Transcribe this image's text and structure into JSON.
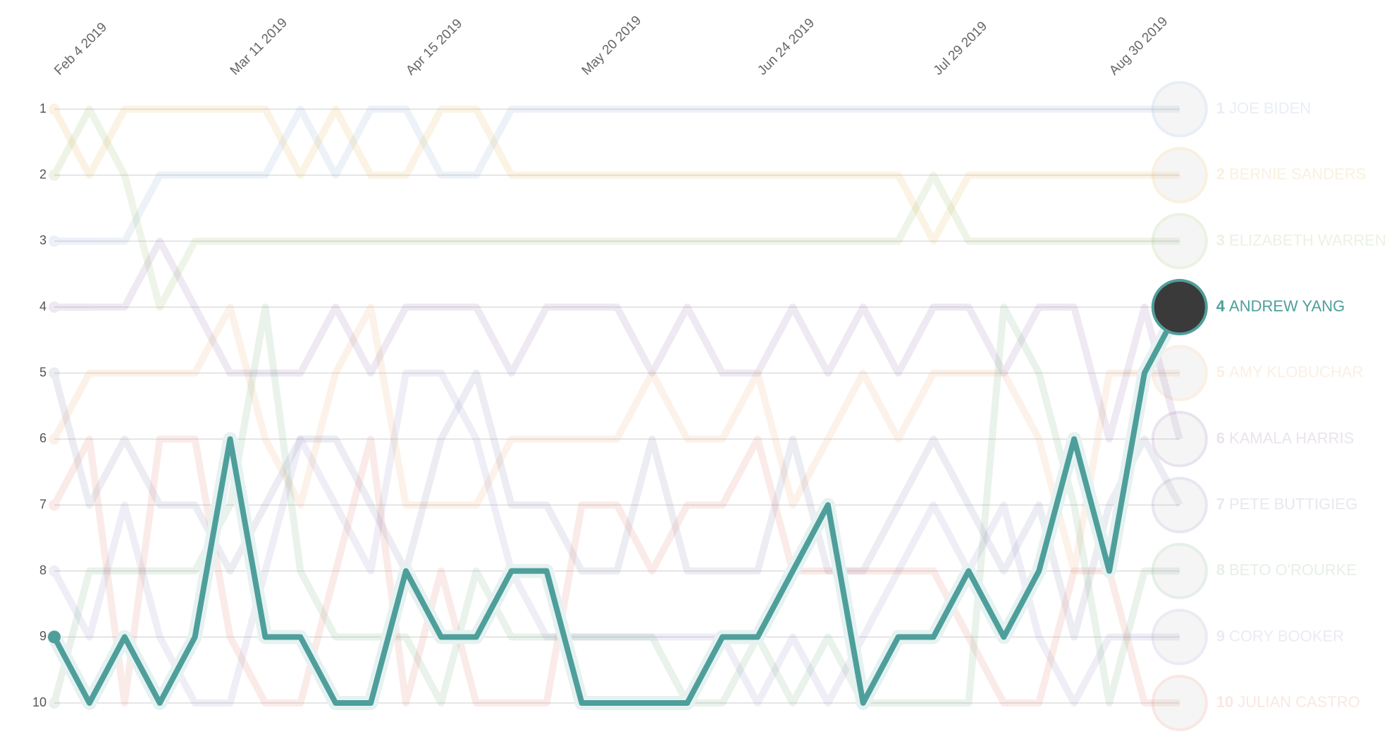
{
  "chart_data": {
    "type": "bump",
    "categories": [
      "Feb 4 2019",
      null,
      null,
      null,
      null,
      "Mar 11 2019",
      null,
      null,
      null,
      null,
      "Apr 15 2019",
      null,
      null,
      null,
      null,
      "May 20 2019",
      null,
      null,
      null,
      null,
      "Jun 24 2019",
      null,
      null,
      null,
      null,
      "Jul 29 2019",
      null,
      null,
      null,
      null,
      "Aug 30 2019",
      null,
      null
    ],
    "ylim": [
      1,
      10
    ],
    "yticks": [
      1,
      2,
      3,
      4,
      5,
      6,
      7,
      8,
      9,
      10
    ],
    "grid": true,
    "series": [
      {
        "name": "JOE BIDEN",
        "color": "#8fb0d4",
        "values": [
          3,
          3,
          3,
          2,
          2,
          2,
          2,
          1,
          2,
          1,
          1,
          2,
          2,
          1,
          1,
          1,
          1,
          1,
          1,
          1,
          1,
          1,
          1,
          1,
          1,
          1,
          1,
          1,
          1,
          1,
          1,
          1,
          1
        ]
      },
      {
        "name": "BERNIE SANDERS",
        "color": "#e8b960",
        "values": [
          1,
          2,
          1,
          1,
          1,
          1,
          1,
          2,
          1,
          2,
          2,
          1,
          1,
          2,
          2,
          2,
          2,
          2,
          2,
          2,
          2,
          2,
          2,
          2,
          2,
          3,
          2,
          2,
          2,
          2,
          2,
          2,
          2
        ]
      },
      {
        "name": "ELIZABETH WARREN",
        "color": "#9bbf6e",
        "values": [
          2,
          1,
          2,
          4,
          3,
          3,
          3,
          3,
          3,
          3,
          3,
          3,
          3,
          3,
          3,
          3,
          3,
          3,
          3,
          3,
          3,
          3,
          3,
          3,
          3,
          2,
          3,
          3,
          3,
          3,
          3,
          3,
          3
        ]
      },
      {
        "name": "ANDREW YANG",
        "color": "#4e9f9b",
        "highlight": true,
        "values": [
          9,
          10,
          9,
          10,
          9,
          6,
          9,
          9,
          10,
          10,
          8,
          9,
          9,
          8,
          8,
          10,
          10,
          10,
          10,
          9,
          9,
          8,
          7,
          10,
          9,
          9,
          8,
          9,
          8,
          6,
          8,
          5,
          4
        ]
      },
      {
        "name": "AMY KLOBUCHAR",
        "color": "#f0b27a",
        "values": [
          6,
          5,
          5,
          5,
          5,
          4,
          6,
          7,
          5,
          4,
          7,
          7,
          7,
          6,
          6,
          6,
          6,
          5,
          6,
          6,
          5,
          7,
          6,
          5,
          6,
          5,
          5,
          5,
          6,
          8,
          5,
          5,
          5
        ]
      },
      {
        "name": "KAMALA HARRIS",
        "color": "#9a7ab0",
        "values": [
          4,
          4,
          4,
          3,
          4,
          5,
          5,
          5,
          4,
          5,
          4,
          4,
          4,
          5,
          4,
          4,
          4,
          5,
          4,
          5,
          5,
          4,
          5,
          4,
          5,
          4,
          4,
          5,
          4,
          4,
          6,
          4,
          6
        ]
      },
      {
        "name": "PETE BUTTIGIEG",
        "color": "#8c8cb8",
        "values": [
          5,
          7,
          6,
          7,
          7,
          8,
          7,
          6,
          6,
          7,
          8,
          6,
          5,
          7,
          7,
          8,
          8,
          6,
          8,
          8,
          8,
          6,
          8,
          8,
          7,
          6,
          7,
          8,
          7,
          9,
          7,
          6,
          7
        ]
      },
      {
        "name": "BETO O'ROURKE",
        "color": "#7fb38a",
        "values": [
          10,
          8,
          8,
          8,
          8,
          7,
          4,
          8,
          9,
          9,
          9,
          10,
          8,
          9,
          9,
          9,
          9,
          9,
          10,
          10,
          9,
          10,
          9,
          10,
          10,
          10,
          10,
          4,
          5,
          7,
          10,
          8,
          8
        ]
      },
      {
        "name": "CORY BOOKER",
        "color": "#a29bc9",
        "values": [
          8,
          9,
          7,
          9,
          10,
          10,
          8,
          6,
          7,
          8,
          5,
          5,
          6,
          8,
          9,
          9,
          9,
          9,
          9,
          9,
          10,
          9,
          10,
          9,
          8,
          7,
          8,
          7,
          9,
          10,
          9,
          9,
          9
        ]
      },
      {
        "name": "JULIAN CASTRO",
        "color": "#e48a7a",
        "values": [
          7,
          6,
          10,
          6,
          6,
          9,
          10,
          10,
          8,
          6,
          10,
          8,
          10,
          10,
          10,
          7,
          7,
          8,
          7,
          7,
          6,
          8,
          8,
          8,
          8,
          8,
          9,
          10,
          10,
          8,
          8,
          10,
          10
        ]
      }
    ]
  }
}
